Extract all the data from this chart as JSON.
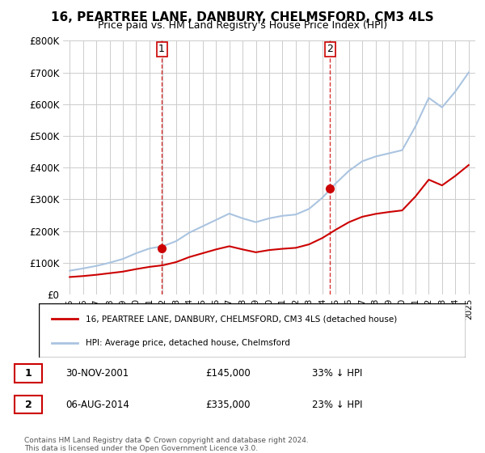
{
  "title": "16, PEARTREE LANE, DANBURY, CHELMSFORD, CM3 4LS",
  "subtitle": "Price paid vs. HM Land Registry's House Price Index (HPI)",
  "ylim": [
    0,
    800000
  ],
  "yticks": [
    0,
    100000,
    200000,
    300000,
    400000,
    500000,
    600000,
    700000,
    800000
  ],
  "ytick_labels": [
    "£0",
    "£100K",
    "£200K",
    "£300K",
    "£400K",
    "£500K",
    "£600K",
    "£700K",
    "£800K"
  ],
  "hpi_color": "#aac4e0",
  "price_color": "#cc0000",
  "marker_color_1": "#cc0000",
  "marker_color_2": "#cc0000",
  "vline_color": "#cc0000",
  "grid_color": "#cccccc",
  "bg_color": "#ffffff",
  "legend_box_color": "#000000",
  "purchase1_date": 2001.92,
  "purchase1_price": 145000,
  "purchase1_label": "1",
  "purchase2_date": 2014.58,
  "purchase2_price": 335000,
  "purchase2_label": "2",
  "footnote1": "Contains HM Land Registry data © Crown copyright and database right 2024.",
  "footnote2": "This data is licensed under the Open Government Licence v3.0.",
  "legend_line1": "16, PEARTREE LANE, DANBURY, CHELMSFORD, CM3 4LS (detached house)",
  "legend_line2": "HPI: Average price, detached house, Chelmsford",
  "table_row1": [
    "1",
    "30-NOV-2001",
    "£145,000",
    "33% ↓ HPI"
  ],
  "table_row2": [
    "2",
    "06-AUG-2014",
    "£335,000",
    "23% ↓ HPI"
  ],
  "hpi_years": [
    1995,
    1996,
    1997,
    1998,
    1999,
    2000,
    2001,
    2002,
    2003,
    2004,
    2005,
    2006,
    2007,
    2008,
    2009,
    2010,
    2011,
    2012,
    2013,
    2014,
    2015,
    2016,
    2017,
    2018,
    2019,
    2020,
    2021,
    2022,
    2023,
    2024,
    2025
  ],
  "hpi_values": [
    75000,
    82000,
    90000,
    100000,
    112000,
    130000,
    145000,
    152000,
    168000,
    195000,
    215000,
    235000,
    255000,
    240000,
    228000,
    240000,
    248000,
    252000,
    270000,
    305000,
    350000,
    390000,
    420000,
    435000,
    445000,
    455000,
    530000,
    620000,
    590000,
    640000,
    700000
  ],
  "price_years": [
    1995,
    1996,
    1997,
    1998,
    1999,
    2000,
    2001,
    2002,
    2003,
    2004,
    2005,
    2006,
    2007,
    2008,
    2009,
    2010,
    2011,
    2012,
    2013,
    2014,
    2015,
    2016,
    2017,
    2018,
    2019,
    2020,
    2021,
    2022,
    2023,
    2024,
    2025
  ],
  "price_values": [
    55000,
    58000,
    62000,
    67000,
    72000,
    80000,
    87000,
    92000,
    102000,
    118000,
    130000,
    142000,
    152000,
    142000,
    133000,
    140000,
    144000,
    147000,
    158000,
    178000,
    204000,
    228000,
    245000,
    254000,
    260000,
    265000,
    309000,
    362000,
    344000,
    374000,
    408000
  ]
}
